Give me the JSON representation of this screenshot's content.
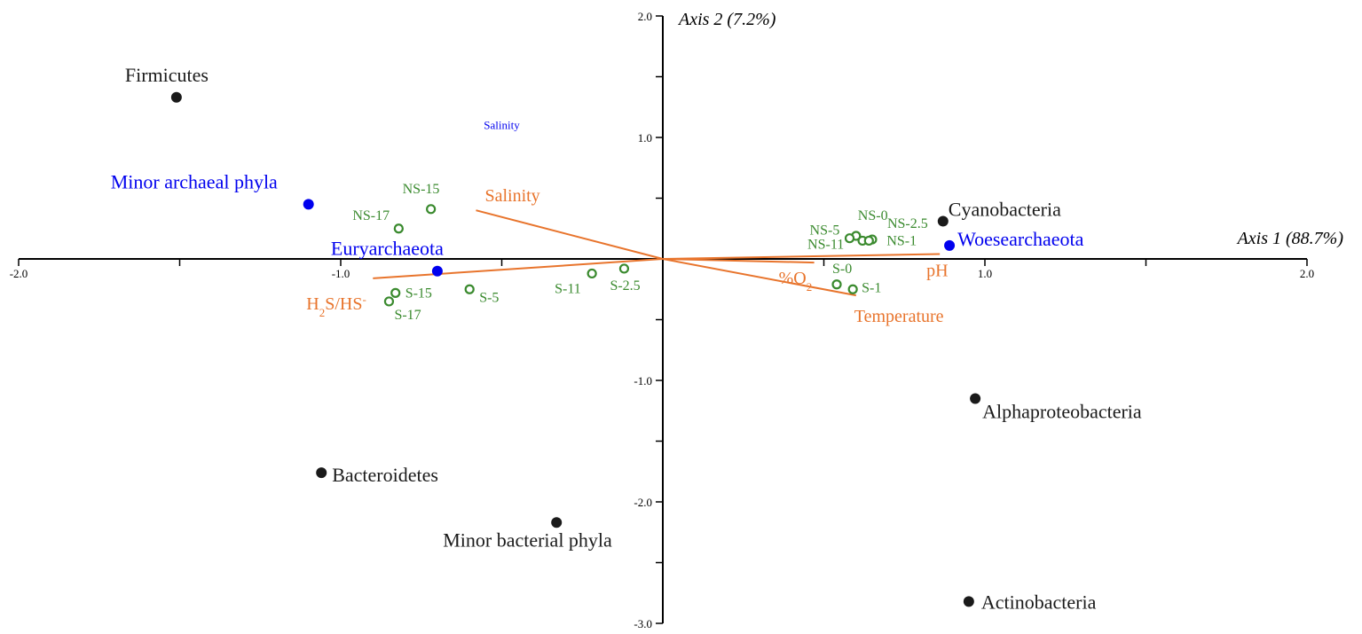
{
  "chart_data": {
    "type": "scatter",
    "xlim": [
      -2.0,
      2.0
    ],
    "ylim": [
      -3.0,
      2.0
    ],
    "x_ticks": [
      {
        "v": -2.0,
        "label": "-2.0"
      },
      {
        "v": -1.0,
        "label": "-1.0"
      },
      {
        "v": 1.0,
        "label": "1.0"
      },
      {
        "v": 2.0,
        "label": "2.0"
      }
    ],
    "x_minor_ticks": [
      -1.5,
      -0.5,
      0.5,
      1.5
    ],
    "y_ticks": [
      {
        "v": 2.0,
        "label": "2.0"
      },
      {
        "v": 1.0,
        "label": "1.0"
      },
      {
        "v": -1.0,
        "label": "-1.0"
      },
      {
        "v": -2.0,
        "label": "-2.0"
      },
      {
        "v": -3.0,
        "label": "-3.0"
      }
    ],
    "y_minor_ticks": [
      1.5,
      0.5,
      -0.5,
      -1.5,
      -2.5
    ],
    "xlabel": "Axis 1 (88.7%)",
    "ylabel": "Axis 2 (7.2%)",
    "grid": false,
    "colors": {
      "bacteria": "#1a1a1a",
      "archaea": "#0000ee",
      "sites": "#3a8a2e",
      "environment": "#e8742c"
    },
    "bacterial_phyla": [
      {
        "name": "Firmicutes",
        "x": -1.51,
        "y": 1.33
      },
      {
        "name": "Cyanobacteria",
        "x": 0.87,
        "y": 0.31
      },
      {
        "name": "Alphaproteobacteria",
        "x": 0.97,
        "y": -1.15
      },
      {
        "name": "Bacteroidetes",
        "x": -1.06,
        "y": -1.76
      },
      {
        "name": "Minor bacterial phyla",
        "x": -0.33,
        "y": -2.17
      },
      {
        "name": "Actinobacteria",
        "x": 0.95,
        "y": -2.82
      }
    ],
    "archaeal_phyla": [
      {
        "name": "Minor archaeal phyla",
        "x": -1.1,
        "y": 0.45
      },
      {
        "name": "Euryarchaeota",
        "x": -0.7,
        "y": -0.1
      },
      {
        "name": "Woesearchaeota",
        "x": 0.89,
        "y": 0.11
      }
    ],
    "sites": [
      {
        "name": "NS-15",
        "x": -0.72,
        "y": 0.41
      },
      {
        "name": "NS-17",
        "x": -0.82,
        "y": 0.25
      },
      {
        "name": "NS-0",
        "x": 0.6,
        "y": 0.19
      },
      {
        "name": "NS-5",
        "x": 0.58,
        "y": 0.17
      },
      {
        "name": "NS-11",
        "x": 0.62,
        "y": 0.15
      },
      {
        "name": "NS-2.5",
        "x": 0.65,
        "y": 0.16
      },
      {
        "name": "NS-1",
        "x": 0.64,
        "y": 0.15
      },
      {
        "name": "S-0",
        "x": 0.54,
        "y": -0.21
      },
      {
        "name": "S-1",
        "x": 0.59,
        "y": -0.25
      },
      {
        "name": "S-2.5",
        "x": -0.12,
        "y": -0.08
      },
      {
        "name": "S-11",
        "x": -0.22,
        "y": -0.12
      },
      {
        "name": "S-5",
        "x": -0.6,
        "y": -0.25
      },
      {
        "name": "S-15",
        "x": -0.83,
        "y": -0.28
      },
      {
        "name": "S-17",
        "x": -0.85,
        "y": -0.35
      }
    ],
    "environmental_variables": [
      {
        "name": "Salinity",
        "x": -0.58,
        "y": 0.4
      },
      {
        "name": "pH",
        "x": 0.86,
        "y": 0.04
      },
      {
        "name": "%O2",
        "x": 0.47,
        "y": -0.03
      },
      {
        "name": "Temperature",
        "x": 0.6,
        "y": -0.3
      },
      {
        "name": "H2S/HS-",
        "x": -0.9,
        "y": -0.16
      }
    ],
    "annotations": [
      {
        "text": "Salinity",
        "x": -0.5,
        "y": 1.07
      }
    ]
  }
}
